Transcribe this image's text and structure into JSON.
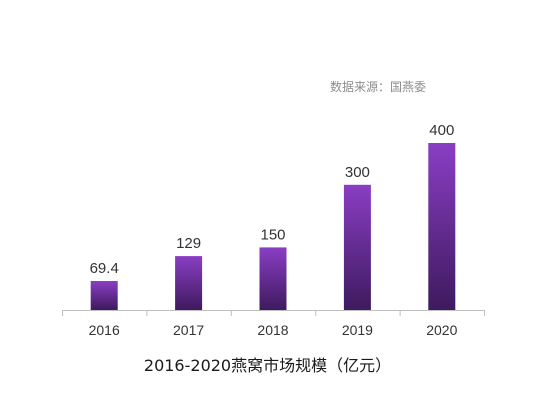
{
  "source": "数据来源：国燕委",
  "chart_data": {
    "type": "bar",
    "title": "2016-2020燕窝市场规模（亿元）",
    "categories": [
      "2016",
      "2017",
      "2018",
      "2019",
      "2020"
    ],
    "values": [
      69.4,
      129,
      150,
      300,
      400
    ],
    "value_labels": [
      "69.4",
      "129",
      "150",
      "300",
      "400"
    ],
    "ylim": [
      0,
      400
    ],
    "grid": false,
    "legend": "none",
    "colors": {
      "bar_top": "#8a3ec4",
      "bar_bottom": "#3e1a5e",
      "axis": "#bfbfbf"
    }
  }
}
